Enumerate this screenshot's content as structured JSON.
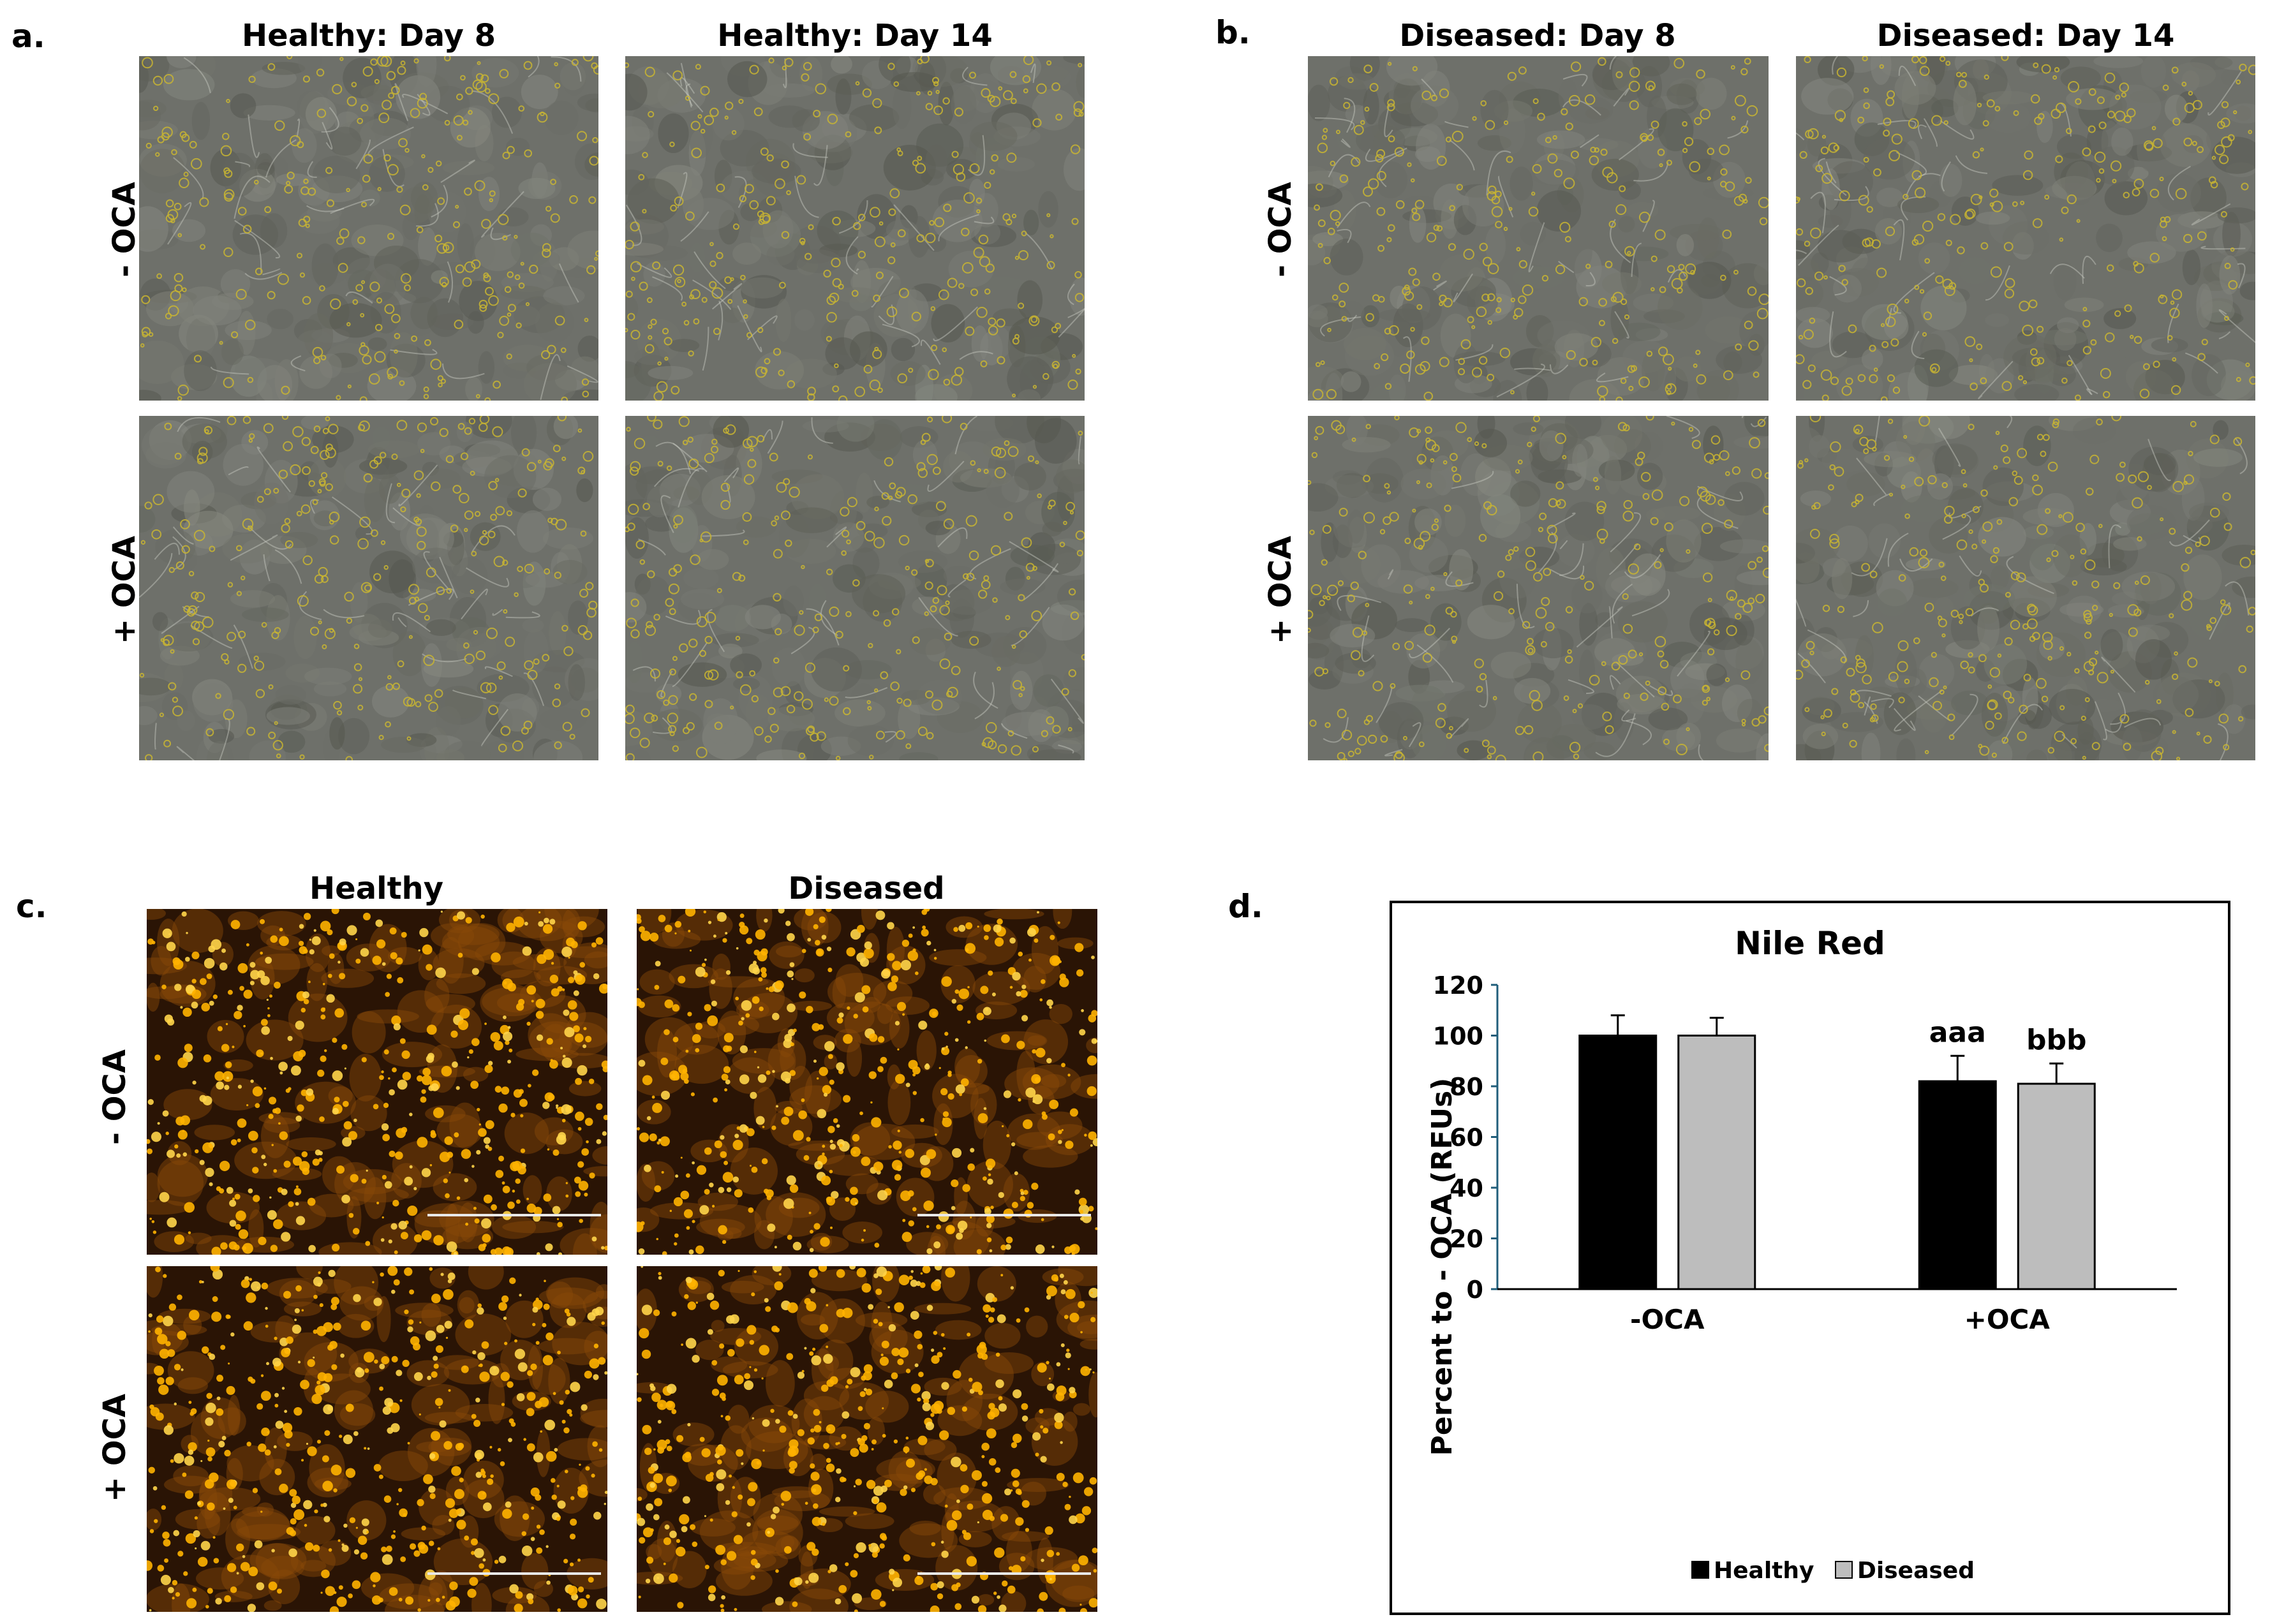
{
  "panels": {
    "a": {
      "label": "a.",
      "col_titles": [
        "Healthy: Day 8",
        "Healthy: Day 14"
      ],
      "row_labels": [
        "- OCA",
        "+ OCA"
      ]
    },
    "b": {
      "label": "b.",
      "col_titles": [
        "Diseased: Day 8",
        "Diseased: Day 14"
      ],
      "row_labels": [
        "- OCA",
        "+ OCA"
      ]
    },
    "c": {
      "label": "c.",
      "col_titles": [
        "Healthy",
        "Diseased"
      ],
      "row_labels": [
        "- OCA",
        "+ OCA"
      ]
    },
    "d": {
      "label": "d."
    }
  },
  "colors": {
    "brightfield_bg": "#6e706a",
    "brightfield_droplet": "#c9b531",
    "fluor_bg": "#2a1405",
    "fluor_droplet": "#ffb300",
    "healthy_bar": "#000000",
    "diseased_bar": "#bdbdbd",
    "axis": "#1f5d7a"
  },
  "chart_data": {
    "type": "bar",
    "title": "Nile Red",
    "ylabel": "Percent to - OCA (RFUs)",
    "xlabel": "",
    "categories": [
      "-OCA",
      "+OCA"
    ],
    "ylim": [
      0,
      120
    ],
    "yticks": [
      0,
      20,
      40,
      60,
      80,
      100,
      120
    ],
    "series": [
      {
        "name": "Healthy",
        "color": "#000000",
        "values": [
          100,
          82
        ],
        "errors": [
          8,
          10
        ]
      },
      {
        "name": "Diseased",
        "color": "#bdbdbd",
        "values": [
          100,
          81
        ],
        "errors": [
          7,
          8
        ]
      }
    ],
    "annotations": [
      {
        "category": "+OCA",
        "series": "Healthy",
        "text": "aaa"
      },
      {
        "category": "+OCA",
        "series": "Diseased",
        "text": "bbb"
      }
    ],
    "legend_position": "bottom",
    "grid": false
  }
}
